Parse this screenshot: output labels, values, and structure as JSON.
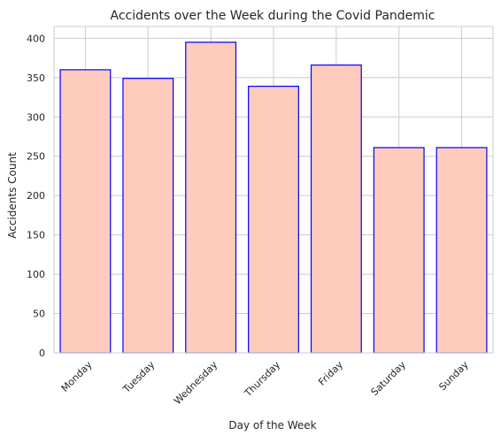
{
  "chart_data": {
    "type": "bar",
    "title": "Accidents over the Week during the Covid Pandemic",
    "xlabel": "Day of the Week",
    "ylabel": "Accidents Count",
    "categories": [
      "Monday",
      "Tuesday",
      "Wednesday",
      "Thursday",
      "Friday",
      "Saturday",
      "Sunday"
    ],
    "values": [
      360,
      349,
      395,
      339,
      366,
      261,
      261
    ],
    "ylim": [
      0,
      415
    ],
    "yticks": [
      0,
      50,
      100,
      150,
      200,
      250,
      300,
      350,
      400
    ],
    "grid": true,
    "bar_fill": "#ffcbbc",
    "bar_edge": "#0000ff",
    "grid_color": "#cccccc"
  }
}
